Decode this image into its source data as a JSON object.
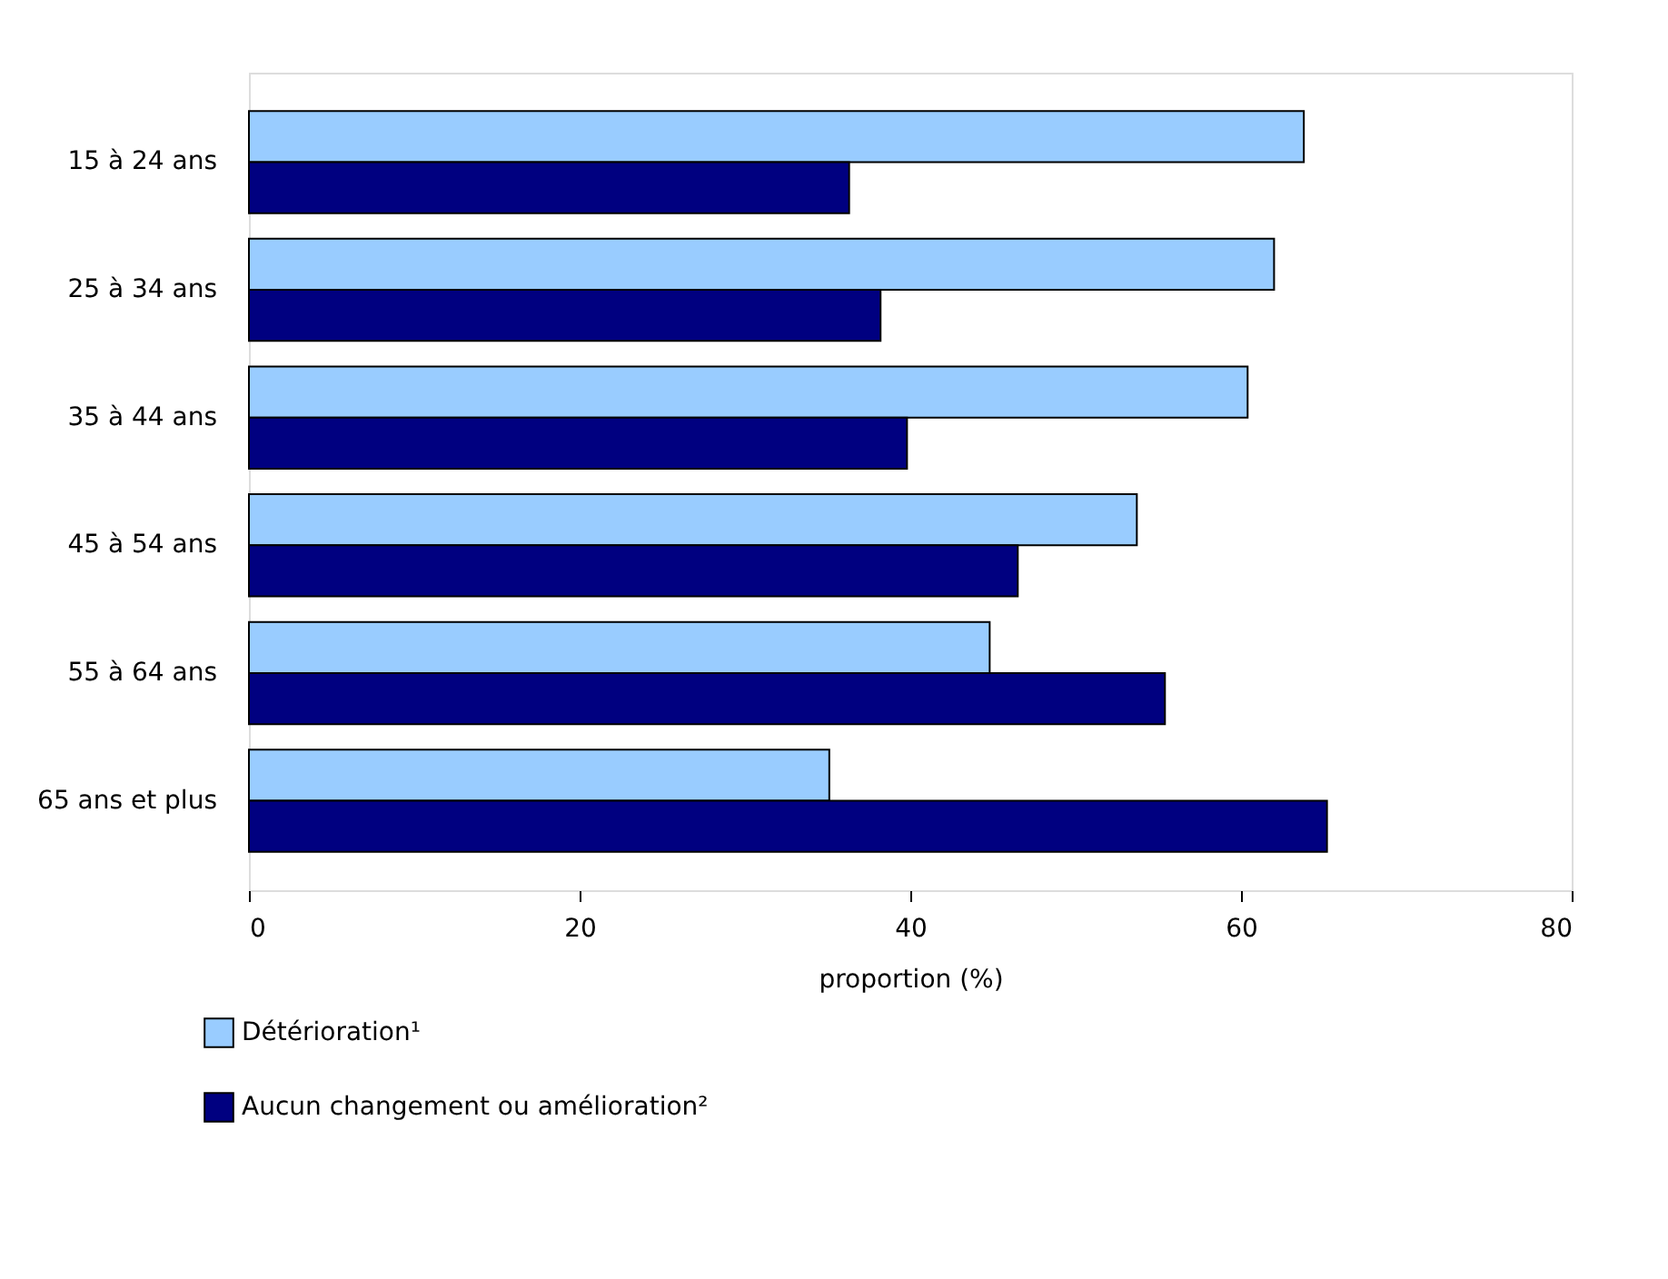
{
  "chart_data": {
    "type": "bar",
    "orientation": "horizontal",
    "xlabel": "proportion (%)",
    "categories": [
      "15 à 24 ans",
      "25 à 34 ans",
      "35 à 44 ans",
      "45 à 54 ans",
      "55 à 64 ans",
      "65 ans et plus"
    ],
    "series": [
      {
        "name": "Détérioration¹",
        "color": "#99ccff",
        "values": [
          63.8,
          62.0,
          60.4,
          53.7,
          44.8,
          35.1
        ]
      },
      {
        "name": "Aucun changement ou amélioration²",
        "color": "#000080",
        "values": [
          36.3,
          38.2,
          39.8,
          46.5,
          55.4,
          65.2
        ]
      }
    ],
    "xlim": [
      0,
      80
    ],
    "xticks": [
      0,
      20,
      40,
      60,
      80
    ],
    "grid": false,
    "legend": "bottom left"
  }
}
